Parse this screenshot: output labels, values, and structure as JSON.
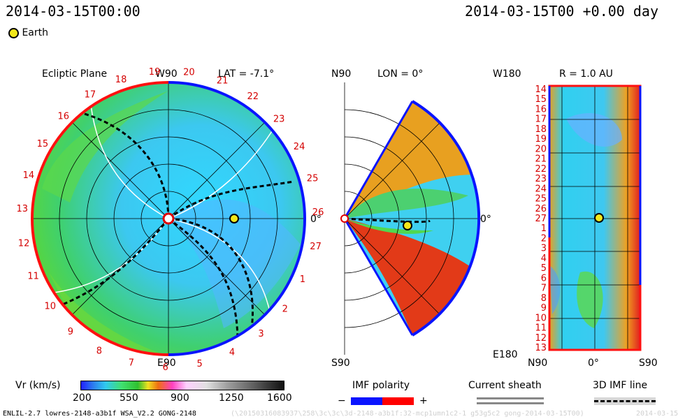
{
  "header": {
    "date_left": "2014-03-15T00:00",
    "date_right": "2014-03-15T00 +0.00 day",
    "legend_earth": "Earth"
  },
  "ecliptic": {
    "title": "Ecliptic Plane",
    "w_label": "W90",
    "e_label": "E90",
    "lat_label": "LAT = -7.1°",
    "zero_label": "0°",
    "carrington_numbers": [
      "19",
      "20",
      "21",
      "22",
      "23",
      "24",
      "25",
      "26",
      "27",
      "1",
      "2",
      "3",
      "4",
      "5",
      "6",
      "7",
      "8",
      "9",
      "10",
      "11",
      "12",
      "13",
      "14",
      "15",
      "16",
      "17",
      "18"
    ]
  },
  "meridional": {
    "n_label": "N90",
    "s_label": "S90",
    "lon_label": "LON = 0°",
    "zero_label": "0°"
  },
  "rsphere": {
    "w_label": "W180",
    "e_label": "E180",
    "r_label": "R = 1.0 AU",
    "n_label": "N90",
    "s_label": "S90",
    "zero_label": "0°",
    "rows": [
      "14",
      "15",
      "16",
      "17",
      "18",
      "19",
      "20",
      "21",
      "22",
      "23",
      "24",
      "25",
      "26",
      "27",
      "1",
      "2",
      "3",
      "4",
      "5",
      "6",
      "7",
      "8",
      "9",
      "10",
      "11",
      "12",
      "13"
    ]
  },
  "colorbar": {
    "label": "Vr (km/s)",
    "ticks": [
      "200",
      "550",
      "900",
      "1250",
      "1600"
    ],
    "min": 200,
    "max": 1600
  },
  "legends": {
    "imf_title": "IMF polarity",
    "imf_minus": "−",
    "imf_plus": "+",
    "sheath_title": "Current sheath",
    "imf_line_title": "3D IMF line",
    "colors": {
      "negative": "#0a14ff",
      "positive": "#ff0000",
      "sheath": "#888888"
    }
  },
  "footer": {
    "model": "ENLIL-2.7 lowres-2148-a3b1f WSA_V2.2 GONG-2148",
    "run_id": "(\\20150316083937\\258\\3c\\3c\\3d-2148-a3b1f:32-mcp1umn1c2-1 g53g5c2 gong-2014-03-15T00)",
    "trail": "2014-03-15"
  }
}
